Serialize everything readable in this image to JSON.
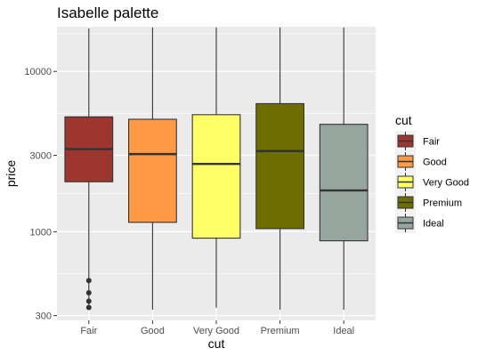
{
  "chart_data": {
    "type": "boxplot",
    "title": "Isabelle palette",
    "xlabel": "cut",
    "ylabel": "price",
    "y_scale": "log10",
    "ylim": [
      280,
      19000
    ],
    "y_ticks": [
      300,
      1000,
      3000,
      10000
    ],
    "categories": [
      "Fair",
      "Good",
      "Very Good",
      "Premium",
      "Ideal"
    ],
    "boxes": [
      {
        "category": "Fair",
        "whisker_low": 337,
        "q1": 2050,
        "median": 3282,
        "q3": 5206,
        "whisker_high": 18574,
        "outliers": [
          337,
          369,
          416,
          496
        ],
        "fill": "#9E3630"
      },
      {
        "category": "Good",
        "whisker_low": 327,
        "q1": 1145,
        "median": 3050,
        "q3": 5028,
        "whisker_high": 18788,
        "outliers": [],
        "fill": "#FF9944"
      },
      {
        "category": "Very Good",
        "whisker_low": 336,
        "q1": 912,
        "median": 2648,
        "q3": 5373,
        "whisker_high": 18818,
        "outliers": [],
        "fill": "#FFFF66"
      },
      {
        "category": "Premium",
        "whisker_low": 326,
        "q1": 1046,
        "median": 3185,
        "q3": 6296,
        "whisker_high": 18823,
        "outliers": [],
        "fill": "#6E6E00"
      },
      {
        "category": "Ideal",
        "whisker_low": 326,
        "q1": 878,
        "median": 1810,
        "q3": 4678,
        "whisker_high": 18806,
        "outliers": [],
        "fill": "#97A59F"
      }
    ],
    "legend": {
      "title": "cut",
      "position": "right",
      "entries": [
        "Fair",
        "Good",
        "Very Good",
        "Premium",
        "Ideal"
      ]
    },
    "grid": true,
    "panel_background": "#EBEBEB",
    "grid_color": "#FFFFFF"
  }
}
